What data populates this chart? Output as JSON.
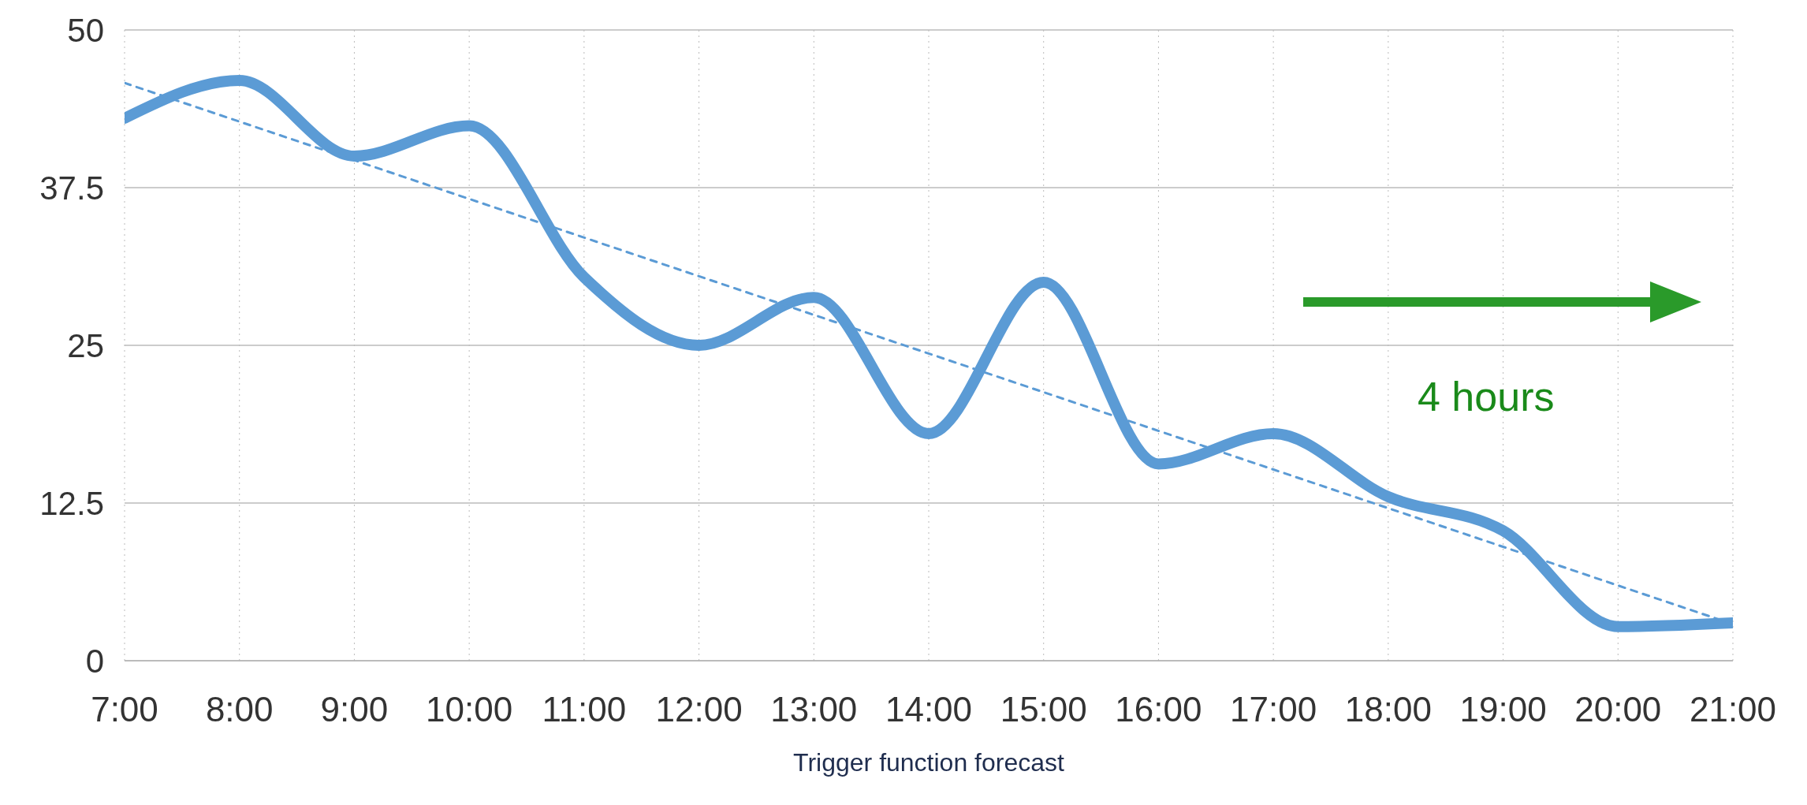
{
  "chart_data": {
    "type": "line",
    "xlabel": "Trigger function forecast",
    "annotations": [
      "4 hours"
    ],
    "x": [
      7,
      8,
      9,
      10,
      11,
      12,
      13,
      14,
      15,
      16,
      17,
      18,
      19,
      20,
      21
    ],
    "series": [
      {
        "color": "#5b9bd5",
        "line_style": "solid",
        "values": [
          43,
          46,
          40,
          42.4,
          30.4,
          25,
          28.8,
          18,
          30,
          15.6,
          18,
          13,
          10.3,
          2.7,
          3
        ]
      },
      {
        "type": "line",
        "color": "#5b9bd5",
        "line_style": "dashed",
        "x": [
          7,
          21
        ],
        "values": [
          45.8,
          2.9
        ]
      }
    ],
    "xlim": [
      7,
      21
    ],
    "xticks": [
      {
        "value": 7,
        "label": "7:00"
      },
      {
        "value": 8,
        "label": "8:00"
      },
      {
        "value": 9,
        "label": "9:00"
      },
      {
        "value": 10,
        "label": "10:00"
      },
      {
        "value": 11,
        "label": "11:00"
      },
      {
        "value": 12,
        "label": "12:00"
      },
      {
        "value": 13,
        "label": "13:00"
      },
      {
        "value": 14,
        "label": "14:00"
      },
      {
        "value": 15,
        "label": "15:00"
      },
      {
        "value": 16,
        "label": "16:00"
      },
      {
        "value": 17,
        "label": "17:00"
      },
      {
        "value": 18,
        "label": "18:00"
      },
      {
        "value": 19,
        "label": "19:00"
      },
      {
        "value": 20,
        "label": "20:00"
      },
      {
        "value": 21,
        "label": "21:00"
      }
    ],
    "ylim": [
      0,
      50
    ],
    "yticks": [
      0,
      12.5,
      25,
      37.5,
      50
    ],
    "grid": true,
    "marker": "none"
  }
}
